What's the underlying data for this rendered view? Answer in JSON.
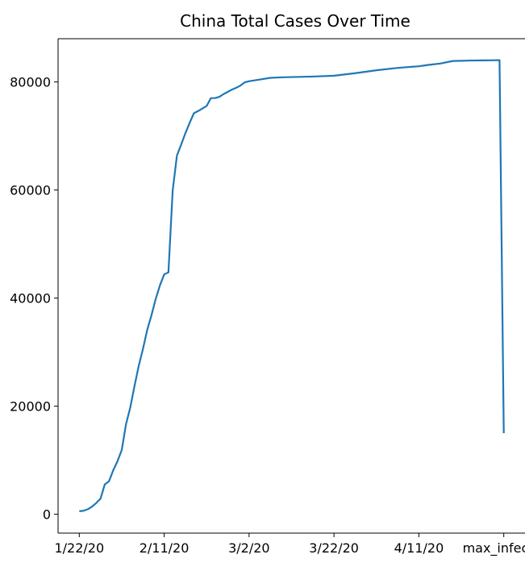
{
  "chart_data": {
    "type": "line",
    "title": "China Total Cases Over Time",
    "xlabel": "",
    "ylabel": "",
    "x_tick_labels": [
      "1/22/20",
      "2/11/20",
      "3/2/20",
      "3/22/20",
      "4/11/20",
      "max_infectio"
    ],
    "y_tick_labels": [
      "0",
      "20000",
      "40000",
      "60000",
      "80000"
    ],
    "y_ticks": [
      0,
      20000,
      40000,
      60000,
      80000
    ],
    "ylim": [
      -3500,
      88000
    ],
    "xlim_index": [
      -5,
      105
    ],
    "series": [
      {
        "color": "#1f77b4",
        "x_index": [
          0,
          1,
          2,
          3,
          4,
          5,
          6,
          7,
          8,
          9,
          10,
          11,
          12,
          13,
          14,
          15,
          16,
          17,
          18,
          19,
          20,
          21,
          22,
          23,
          24,
          25,
          26,
          27,
          28,
          29,
          30,
          31,
          32,
          33,
          34,
          35,
          36,
          37,
          38,
          39,
          40,
          42,
          45,
          48,
          50,
          55,
          60,
          65,
          70,
          75,
          80,
          82,
          85,
          88,
          90,
          92,
          95,
          98,
          99,
          100
        ],
        "values": [
          548,
          643,
          920,
          1406,
          2075,
          2877,
          5509,
          6087,
          8141,
          9802,
          11891,
          16630,
          19716,
          23707,
          27440,
          30587,
          34110,
          36814,
          39829,
          42354,
          44386,
          44759,
          59895,
          66358,
          68413,
          70513,
          72434,
          74211,
          74619,
          75077,
          75550,
          77001,
          77022,
          77241,
          77754,
          78166,
          78600,
          78928,
          79356,
          79932,
          80136,
          80374,
          80757,
          80861,
          80904,
          80995,
          81156,
          81620,
          82160,
          82602,
          82901,
          83134,
          83403,
          83879,
          83912,
          83959,
          83990,
          84018,
          84024,
          15000
        ]
      }
    ]
  }
}
